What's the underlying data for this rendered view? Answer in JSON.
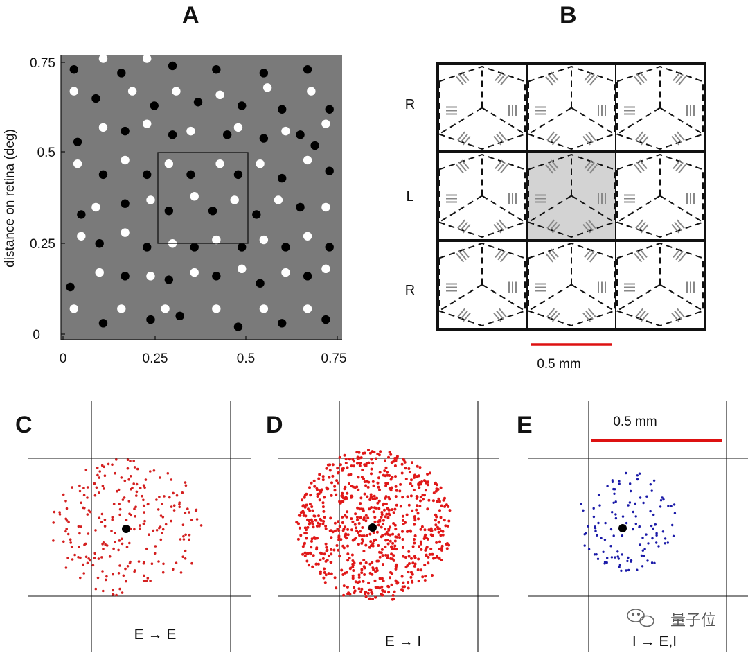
{
  "panel_a": {
    "label": "A",
    "ylabel": "distance on retina (deg)",
    "x_ticks": [
      "0",
      "0.25",
      "0.5",
      "0.75"
    ],
    "y_ticks": [
      "0",
      "0.25",
      "0.5",
      "0.75"
    ],
    "background_color": "#7a7a7a",
    "black_dots": [
      [
        0.03,
        0.73
      ],
      [
        0.16,
        0.72
      ],
      [
        0.3,
        0.74
      ],
      [
        0.42,
        0.73
      ],
      [
        0.55,
        0.72
      ],
      [
        0.67,
        0.73
      ],
      [
        0.09,
        0.65
      ],
      [
        0.25,
        0.63
      ],
      [
        0.37,
        0.64
      ],
      [
        0.49,
        0.63
      ],
      [
        0.6,
        0.62
      ],
      [
        0.73,
        0.62
      ],
      [
        0.17,
        0.56
      ],
      [
        0.3,
        0.55
      ],
      [
        0.45,
        0.55
      ],
      [
        0.55,
        0.54
      ],
      [
        0.65,
        0.55
      ],
      [
        0.04,
        0.53
      ],
      [
        0.69,
        0.52
      ],
      [
        0.11,
        0.44
      ],
      [
        0.23,
        0.44
      ],
      [
        0.35,
        0.44
      ],
      [
        0.48,
        0.44
      ],
      [
        0.6,
        0.43
      ],
      [
        0.73,
        0.45
      ],
      [
        0.17,
        0.36
      ],
      [
        0.29,
        0.34
      ],
      [
        0.41,
        0.34
      ],
      [
        0.53,
        0.33
      ],
      [
        0.65,
        0.35
      ],
      [
        0.05,
        0.33
      ],
      [
        0.1,
        0.25
      ],
      [
        0.23,
        0.24
      ],
      [
        0.36,
        0.24
      ],
      [
        0.49,
        0.24
      ],
      [
        0.61,
        0.24
      ],
      [
        0.73,
        0.24
      ],
      [
        0.17,
        0.16
      ],
      [
        0.29,
        0.15
      ],
      [
        0.42,
        0.16
      ],
      [
        0.54,
        0.14
      ],
      [
        0.67,
        0.16
      ],
      [
        0.02,
        0.13
      ],
      [
        0.11,
        0.03
      ],
      [
        0.24,
        0.04
      ],
      [
        0.32,
        0.05
      ],
      [
        0.48,
        0.02
      ],
      [
        0.6,
        0.03
      ],
      [
        0.72,
        0.04
      ]
    ],
    "white_dots": [
      [
        0.11,
        0.76
      ],
      [
        0.23,
        0.76
      ],
      [
        0.03,
        0.67
      ],
      [
        0.19,
        0.67
      ],
      [
        0.31,
        0.67
      ],
      [
        0.43,
        0.66
      ],
      [
        0.56,
        0.68
      ],
      [
        0.68,
        0.67
      ],
      [
        0.11,
        0.57
      ],
      [
        0.23,
        0.58
      ],
      [
        0.35,
        0.56
      ],
      [
        0.48,
        0.57
      ],
      [
        0.61,
        0.56
      ],
      [
        0.72,
        0.58
      ],
      [
        0.04,
        0.47
      ],
      [
        0.17,
        0.48
      ],
      [
        0.29,
        0.47
      ],
      [
        0.43,
        0.47
      ],
      [
        0.54,
        0.47
      ],
      [
        0.67,
        0.48
      ],
      [
        0.09,
        0.35
      ],
      [
        0.24,
        0.37
      ],
      [
        0.36,
        0.38
      ],
      [
        0.47,
        0.37
      ],
      [
        0.59,
        0.37
      ],
      [
        0.72,
        0.35
      ],
      [
        0.05,
        0.27
      ],
      [
        0.17,
        0.28
      ],
      [
        0.3,
        0.25
      ],
      [
        0.42,
        0.26
      ],
      [
        0.55,
        0.26
      ],
      [
        0.67,
        0.27
      ],
      [
        0.1,
        0.17
      ],
      [
        0.24,
        0.16
      ],
      [
        0.36,
        0.17
      ],
      [
        0.49,
        0.18
      ],
      [
        0.61,
        0.17
      ],
      [
        0.72,
        0.18
      ],
      [
        0.03,
        0.07
      ],
      [
        0.16,
        0.07
      ],
      [
        0.28,
        0.07
      ],
      [
        0.42,
        0.07
      ],
      [
        0.55,
        0.07
      ],
      [
        0.67,
        0.07
      ]
    ]
  },
  "panel_b": {
    "label": "B",
    "row_labels": [
      "R",
      "L",
      "R"
    ],
    "scale_bar_label": "0.5 mm",
    "scale_bar_color": "#dd1111",
    "highlight_color": "#d3d3d3"
  },
  "panel_c": {
    "label": "C",
    "caption": "E → E",
    "dot_color": "#d42020"
  },
  "panel_d": {
    "label": "D",
    "caption": "E → I",
    "dot_color": "#e01818"
  },
  "panel_e": {
    "label": "E",
    "caption": "I → E,I",
    "dot_color": "#1a1aa8",
    "scale_bar_label": "0.5 mm",
    "scale_bar_color": "#dd1111"
  },
  "watermark": {
    "text": "量子位",
    "icon": "wechat-bubbles-icon"
  }
}
